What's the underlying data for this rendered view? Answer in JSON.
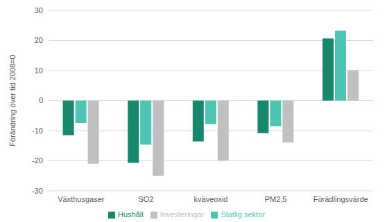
{
  "chart_data": {
    "type": "bar",
    "y_label": "Förändring över tid 2008=0",
    "categories": [
      "Växthusgaser",
      "SO2",
      "kväveoxid",
      "PM2,5",
      "Förädlingsvärde"
    ],
    "series": [
      {
        "name": "Hushåll",
        "color": "#17876d",
        "values": [
          -11.5,
          -20.7,
          -13.6,
          -10.8,
          20.7
        ]
      },
      {
        "name": "Statlig sektor",
        "color": "#4fc4b4",
        "values": [
          -7.5,
          -14.6,
          -7.8,
          -8.5,
          23.2
        ]
      },
      {
        "name": "Investeringar",
        "color": "#c0c0c0",
        "values": [
          -21,
          -25,
          -19.9,
          -13.9,
          10.1
        ]
      }
    ],
    "ylim": [
      -30,
      30
    ],
    "yticks": [
      -30,
      -20,
      -10,
      0,
      10,
      20,
      30
    ],
    "grid": true,
    "legend": "bottom"
  }
}
